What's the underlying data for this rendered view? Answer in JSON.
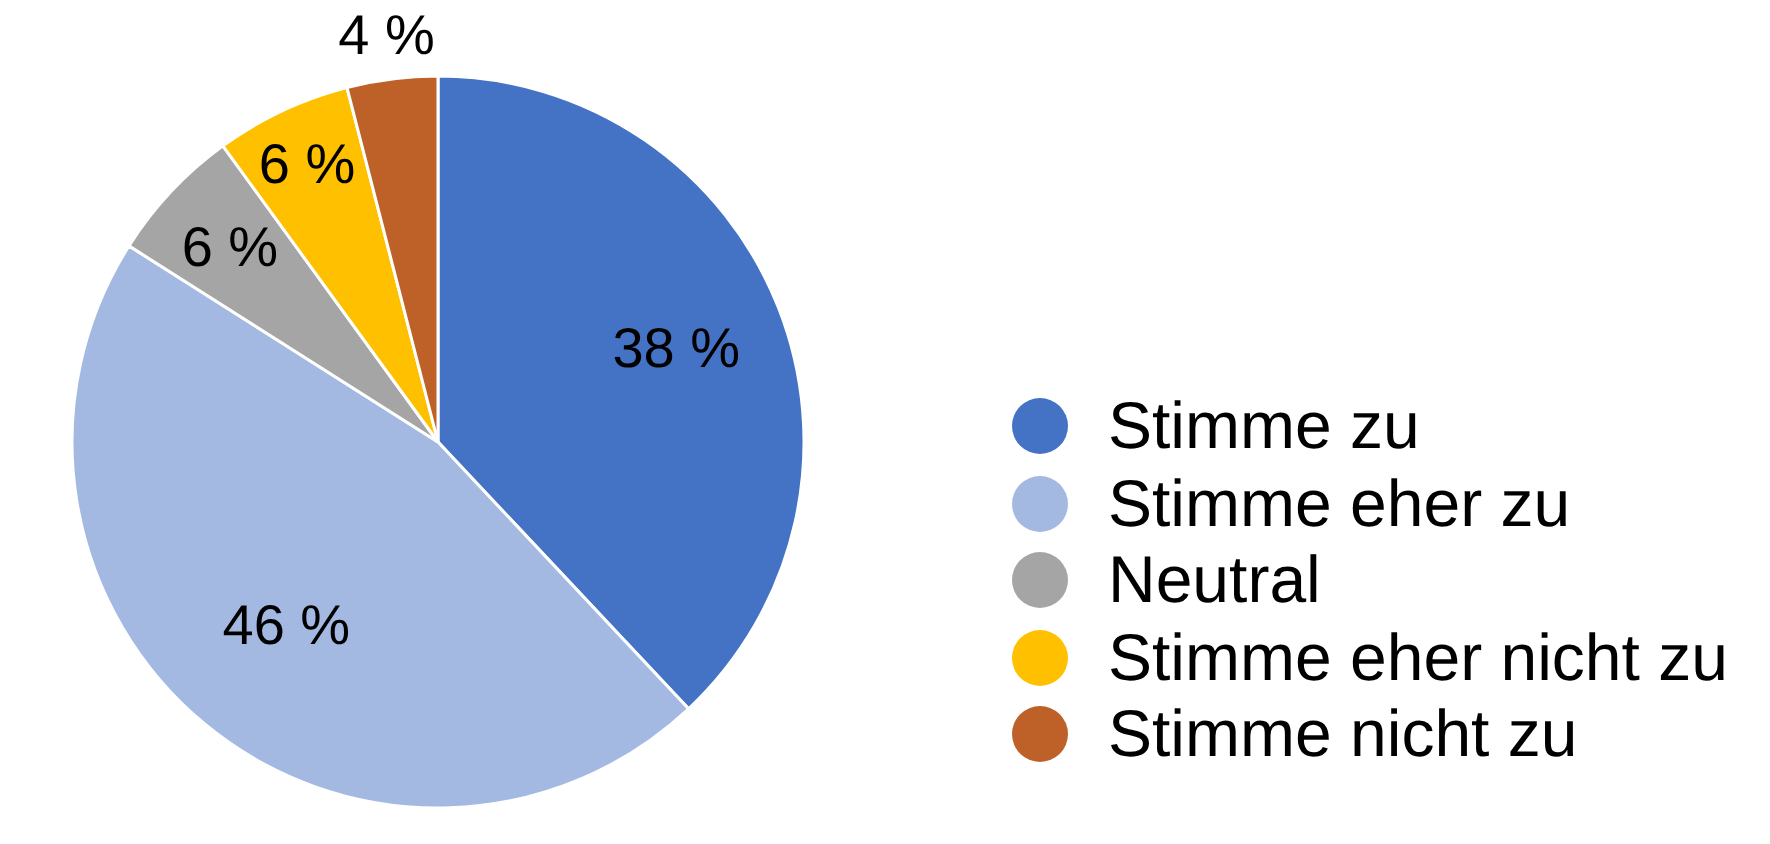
{
  "chart_data": {
    "type": "pie",
    "categories": [
      "Stimme zu",
      "Stimme eher zu",
      "Neutral",
      "Stimme eher nicht zu",
      "Stimme nicht zu"
    ],
    "values": [
      38,
      46,
      6,
      6,
      4
    ],
    "colors": [
      "#4472c4",
      "#a3b9e2",
      "#a5a5a5",
      "#ffc000",
      "#be6128"
    ],
    "value_labels": [
      "38 %",
      "46 %",
      "6 %",
      "6 %",
      "4 %"
    ],
    "legend": "right"
  }
}
